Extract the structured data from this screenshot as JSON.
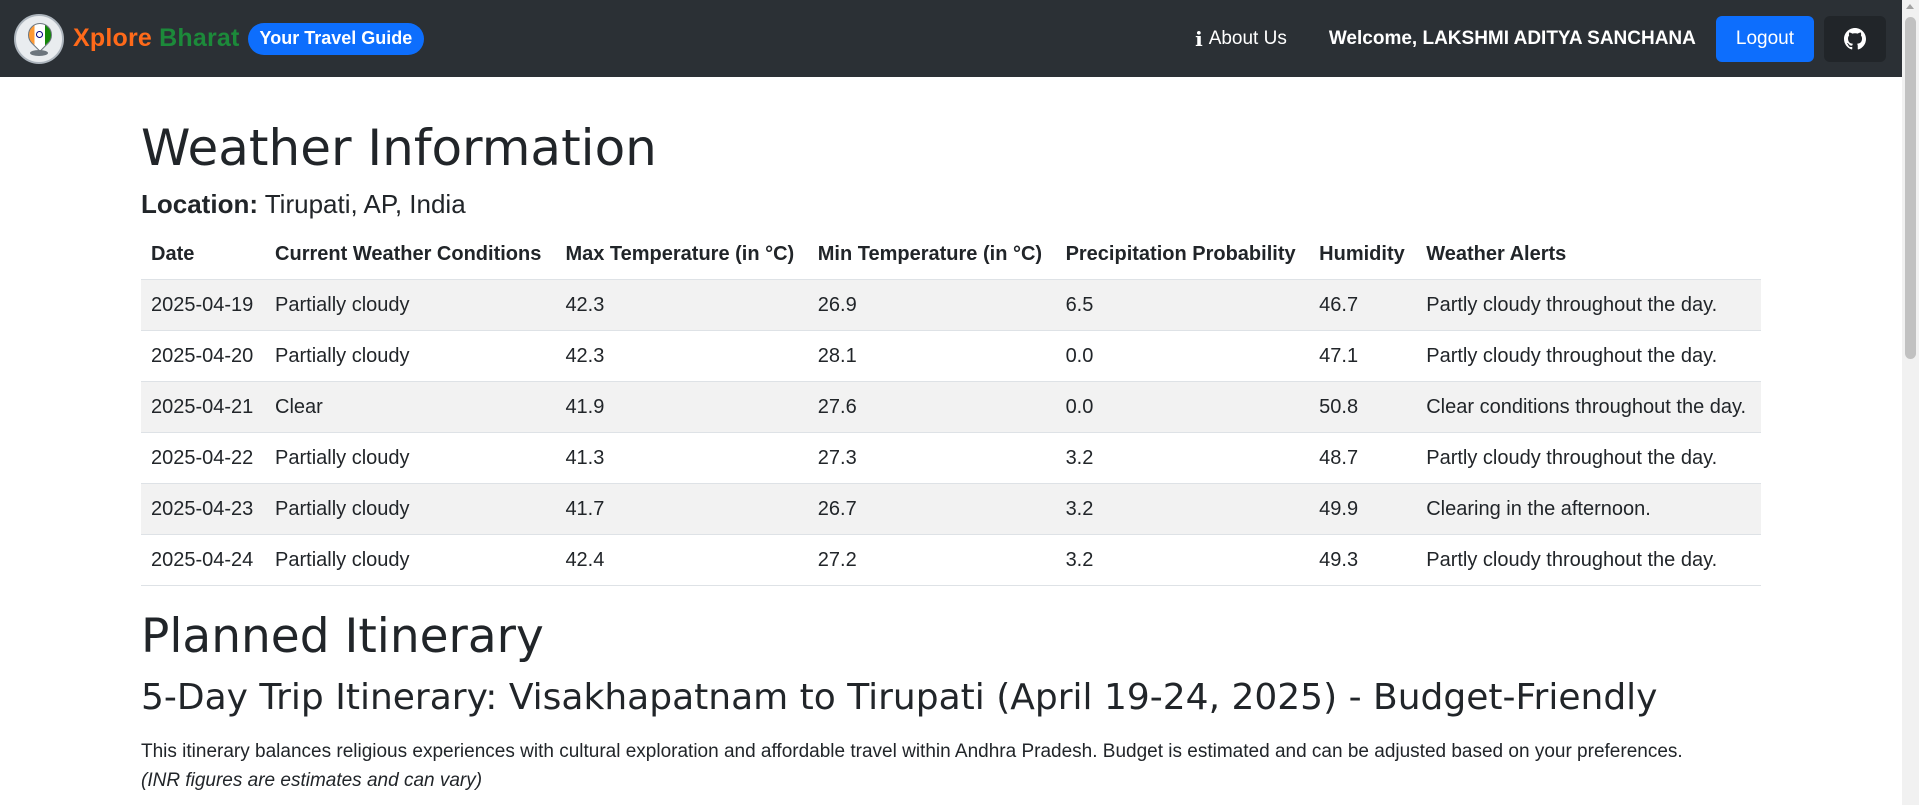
{
  "navbar": {
    "brand_first": "Xplore",
    "brand_second": "Bharat",
    "badge": "Your Travel Guide",
    "about_label": "About Us",
    "welcome": "Welcome, LAKSHMI ADITYA SANCHANA",
    "logout_label": "Logout",
    "icons": {
      "about": "info-icon",
      "github": "github-icon",
      "logo": "india-flag-pin-logo"
    },
    "colors": {
      "bg": "#2b3035",
      "brand_first": "#ff6a1a",
      "brand_second": "#1c8a3a",
      "accent": "#0d6efd"
    }
  },
  "weather": {
    "title": "Weather Information",
    "location_label": "Location:",
    "location_value": "Tirupati, AP, India",
    "headers": [
      "Date",
      "Current Weather Conditions",
      "Max Temperature (in °C)",
      "Min Temperature (in °C)",
      "Precipitation Probability",
      "Humidity",
      "Weather Alerts"
    ],
    "rows": [
      [
        "2025-04-19",
        "Partially cloudy",
        "42.3",
        "26.9",
        "6.5",
        "46.7",
        "Partly cloudy throughout the day."
      ],
      [
        "2025-04-20",
        "Partially cloudy",
        "42.3",
        "28.1",
        "0.0",
        "47.1",
        "Partly cloudy throughout the day."
      ],
      [
        "2025-04-21",
        "Clear",
        "41.9",
        "27.6",
        "0.0",
        "50.8",
        "Clear conditions throughout the day."
      ],
      [
        "2025-04-22",
        "Partially cloudy",
        "41.3",
        "27.3",
        "3.2",
        "48.7",
        "Partly cloudy throughout the day."
      ],
      [
        "2025-04-23",
        "Partially cloudy",
        "41.7",
        "26.7",
        "3.2",
        "49.9",
        "Clearing in the afternoon."
      ],
      [
        "2025-04-24",
        "Partially cloudy",
        "42.4",
        "27.2",
        "3.2",
        "49.3",
        "Partly cloudy throughout the day."
      ]
    ]
  },
  "itinerary": {
    "title": "Planned Itinerary",
    "trip_title": "5-Day Trip Itinerary: Visakhapatnam to Tirupati (April 19-24, 2025) - Budget-Friendly",
    "description": "This itinerary balances religious experiences with cultural exploration and affordable travel within Andhra Pradesh. Budget is estimated and can be adjusted based on your preferences.",
    "note": "(INR figures are estimates and can vary)"
  }
}
